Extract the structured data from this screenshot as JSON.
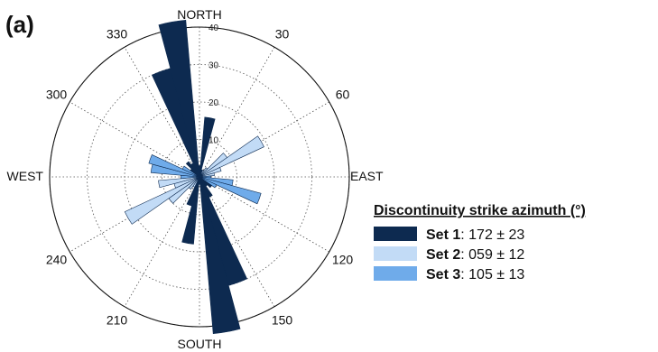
{
  "panel_label": "(a)",
  "chart_data": {
    "type": "rose",
    "compass_labels": {
      "north": "NORTH",
      "south": "SOUTH",
      "east": "EAST",
      "west": "WEST"
    },
    "angle_labels": [
      {
        "angle": 30,
        "text": "30"
      },
      {
        "angle": 60,
        "text": "60"
      },
      {
        "angle": 120,
        "text": "120"
      },
      {
        "angle": 150,
        "text": "150"
      },
      {
        "angle": 210,
        "text": "210"
      },
      {
        "angle": 240,
        "text": "240"
      },
      {
        "angle": 300,
        "text": "300"
      },
      {
        "angle": 330,
        "text": "330"
      }
    ],
    "radial_ticks": [
      "10",
      "20",
      "30",
      "40"
    ],
    "radial_max": 40,
    "bin_width_deg": 10,
    "legend": {
      "title": "Discontinuity strike azimuth (°)",
      "entries": [
        {
          "name": "Set 1",
          "value": ": 172 ± 23",
          "color": "#0d2a50"
        },
        {
          "name": "Set 2",
          "value": ": 059 ± 12",
          "color": "#c2dbf6"
        },
        {
          "name": "Set 3",
          "value": ": 105 ± 13",
          "color": "#6fabea"
        }
      ]
    },
    "bins": [
      {
        "azimuth": 0,
        "count": 3,
        "set": 1
      },
      {
        "azimuth": 10,
        "count": 16,
        "set": 1
      },
      {
        "azimuth": 20,
        "count": 2,
        "set": 1
      },
      {
        "azimuth": 30,
        "count": 2,
        "set": 2
      },
      {
        "azimuth": 40,
        "count": 3,
        "set": 2
      },
      {
        "azimuth": 50,
        "count": 9,
        "set": 2
      },
      {
        "azimuth": 60,
        "count": 19,
        "set": 2
      },
      {
        "azimuth": 70,
        "count": 6,
        "set": 2
      },
      {
        "azimuth": 80,
        "count": 4,
        "set": 2
      },
      {
        "azimuth": 90,
        "count": 3,
        "set": 3
      },
      {
        "azimuth": 100,
        "count": 9,
        "set": 3
      },
      {
        "azimuth": 110,
        "count": 17,
        "set": 3
      },
      {
        "azimuth": 120,
        "count": 5,
        "set": 3
      },
      {
        "azimuth": 130,
        "count": 4,
        "set": 1
      },
      {
        "azimuth": 140,
        "count": 3,
        "set": 1
      },
      {
        "azimuth": 150,
        "count": 6,
        "set": 1
      },
      {
        "azimuth": 160,
        "count": 30,
        "set": 1
      },
      {
        "azimuth": 170,
        "count": 42,
        "set": 1
      },
      {
        "azimuth": 180,
        "count": 2,
        "set": 1
      },
      {
        "azimuth": 190,
        "count": 18,
        "set": 1
      },
      {
        "azimuth": 200,
        "count": 8,
        "set": 1
      },
      {
        "azimuth": 210,
        "count": 3,
        "set": 2
      },
      {
        "azimuth": 220,
        "count": 4,
        "set": 2
      },
      {
        "azimuth": 230,
        "count": 10,
        "set": 2
      },
      {
        "azimuth": 240,
        "count": 22,
        "set": 2
      },
      {
        "azimuth": 250,
        "count": 7,
        "set": 2
      },
      {
        "azimuth": 260,
        "count": 11,
        "set": 2
      },
      {
        "azimuth": 270,
        "count": 5,
        "set": 3
      },
      {
        "azimuth": 280,
        "count": 13,
        "set": 3
      },
      {
        "azimuth": 290,
        "count": 14,
        "set": 3
      },
      {
        "azimuth": 300,
        "count": 5,
        "set": 3
      },
      {
        "azimuth": 310,
        "count": 3,
        "set": 1
      },
      {
        "azimuth": 320,
        "count": 5,
        "set": 1
      },
      {
        "azimuth": 330,
        "count": 4,
        "set": 1
      },
      {
        "azimuth": 340,
        "count": 30,
        "set": 1
      },
      {
        "azimuth": 350,
        "count": 42,
        "set": 1
      }
    ]
  }
}
